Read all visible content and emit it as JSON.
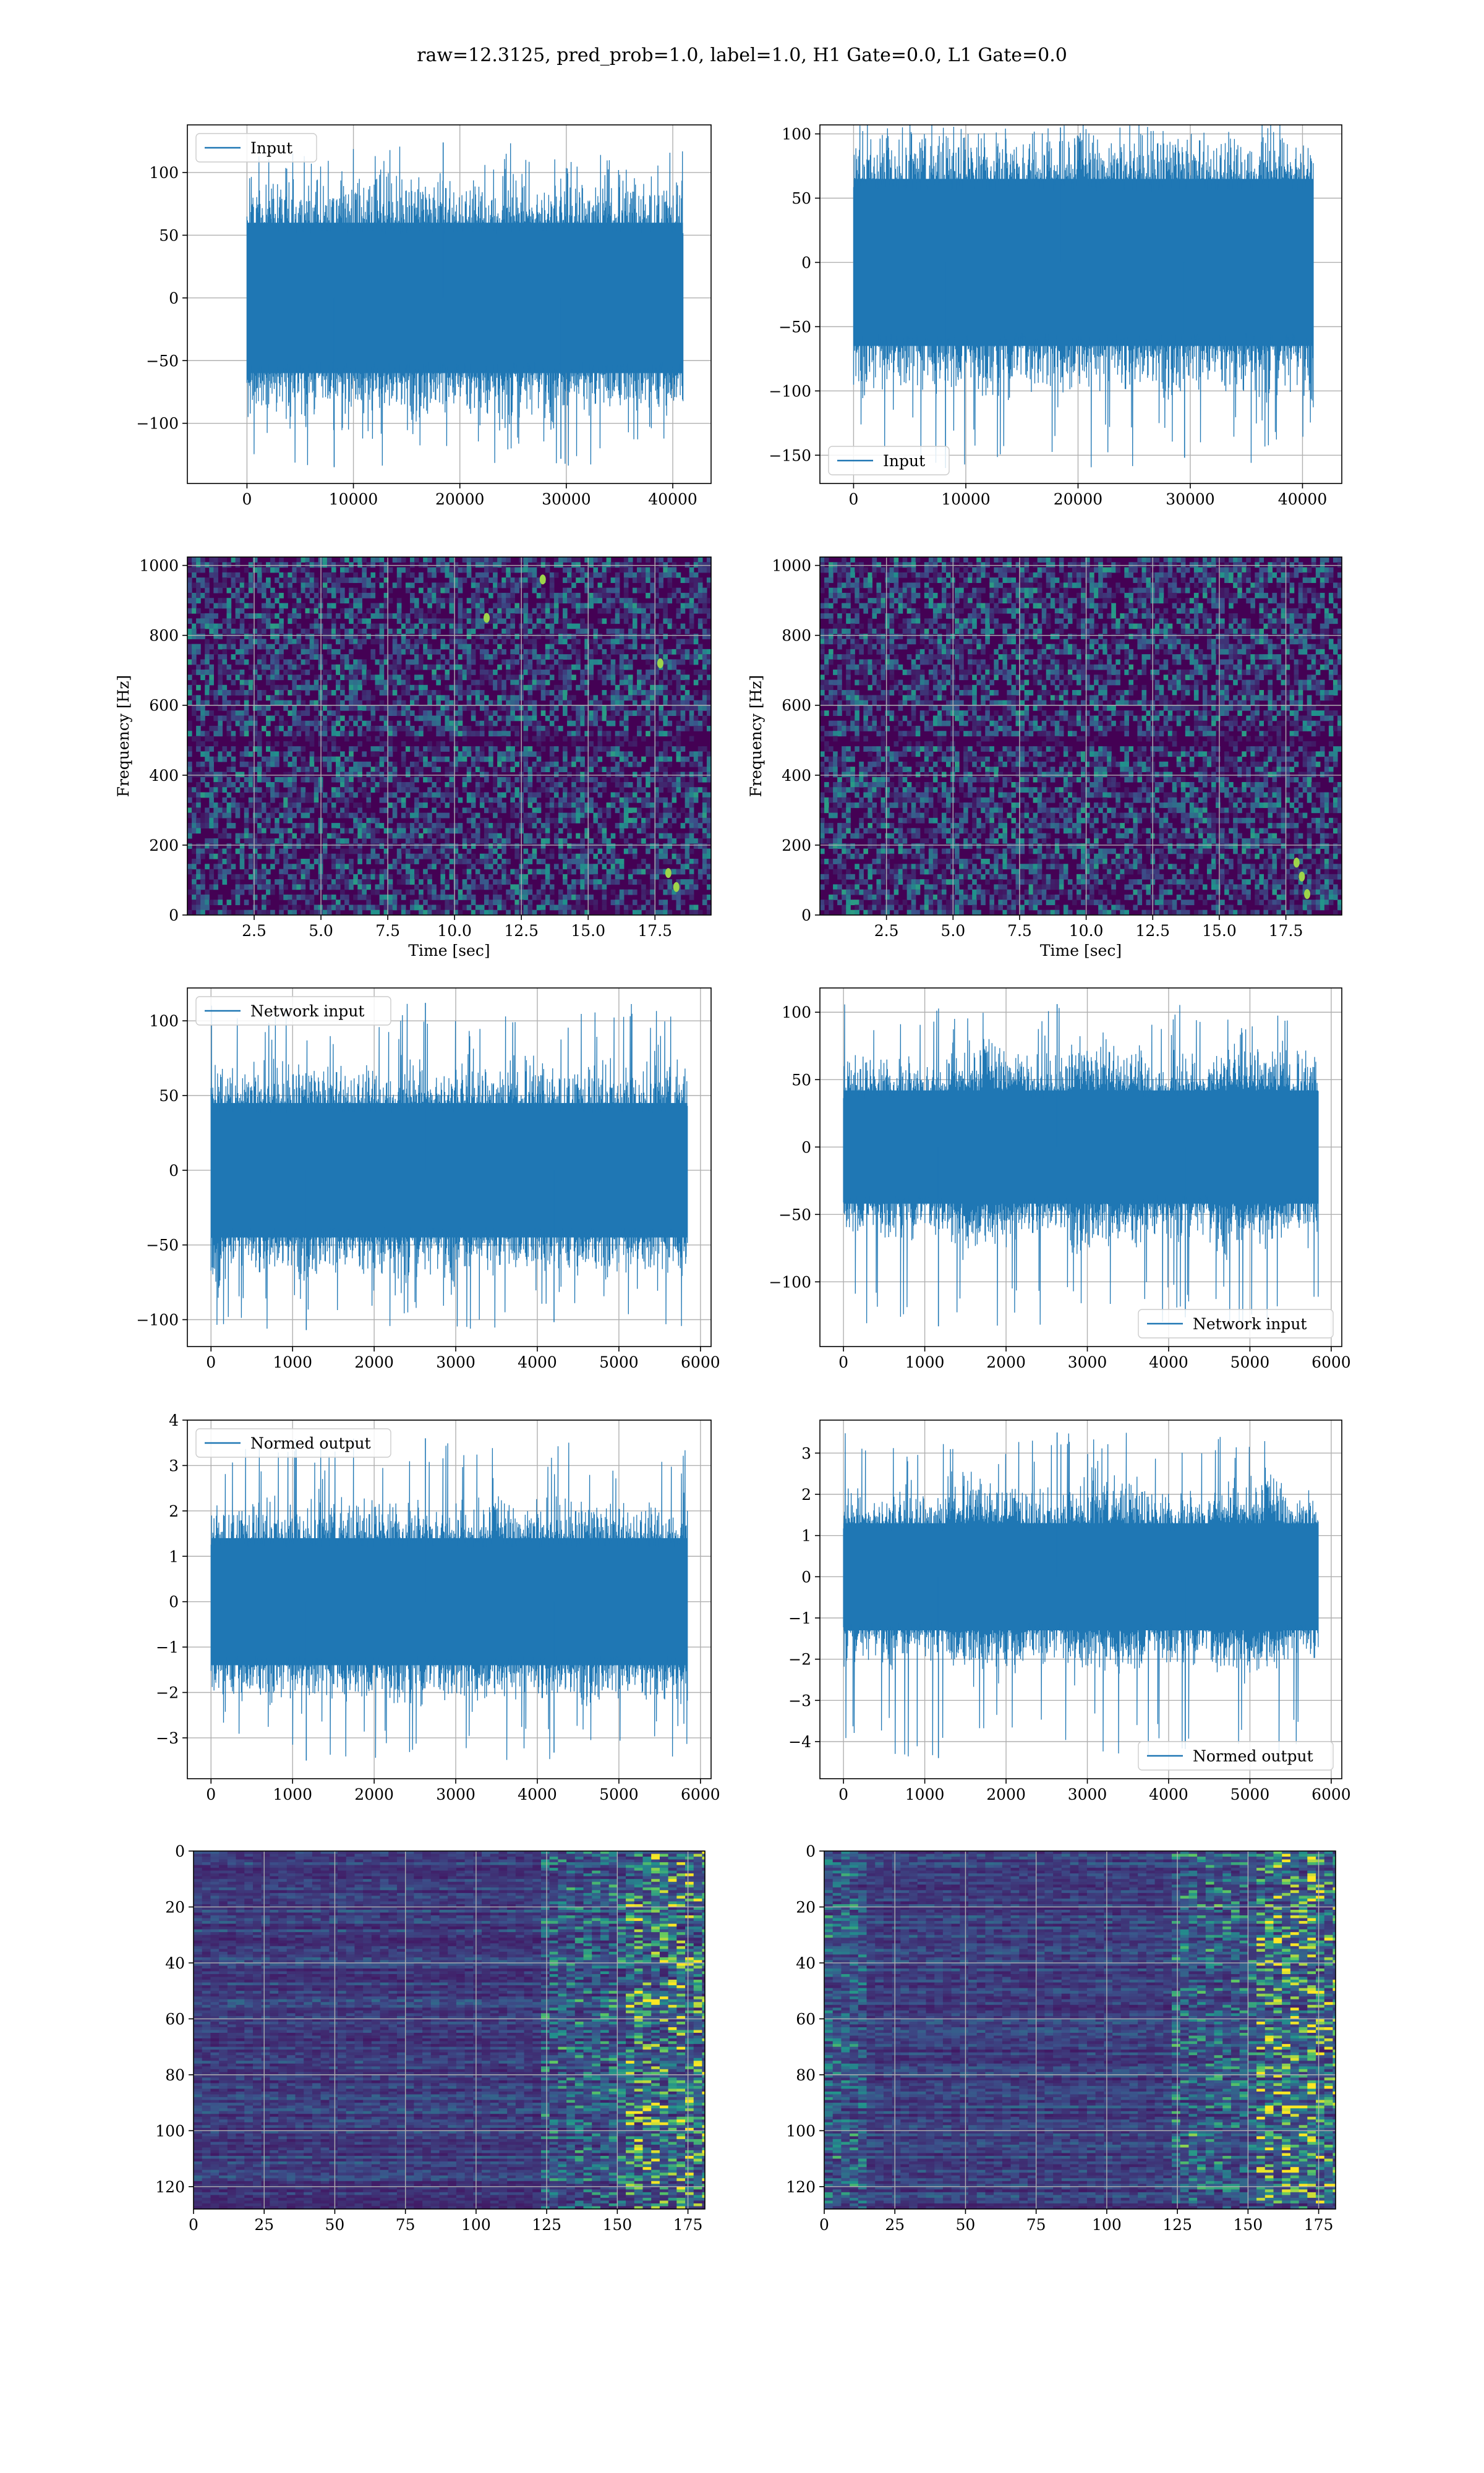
{
  "suptitle": "raw=12.3125, pred_prob=1.0, label=1.0, H1 Gate=0.0, L1 Gate=0.0",
  "colors": {
    "line": "#1f77b4",
    "grid": "#b0b0b0",
    "viridis_low": "#440154",
    "viridis_mid": "#21918c",
    "viridis_high": "#fde725"
  },
  "chart_data": [
    {
      "id": "p1",
      "type": "line",
      "legend": "Input",
      "legend_loc": "upper left",
      "xlim": [
        -5600,
        43600
      ],
      "ylim": [
        -148,
        138
      ],
      "xticks": [
        0,
        10000,
        20000,
        30000,
        40000
      ],
      "yticks": [
        -100,
        -50,
        0,
        50,
        100
      ],
      "series": {
        "x_range": [
          0,
          40960
        ],
        "envelope": [
          -60,
          60
        ],
        "extremes": [
          -135,
          124
        ]
      },
      "grid": true
    },
    {
      "id": "p2",
      "type": "line",
      "legend": "Input",
      "legend_loc": "lower left",
      "xlim": [
        -3000,
        43500
      ],
      "ylim": [
        -172,
        107
      ],
      "xticks": [
        0,
        10000,
        20000,
        30000,
        40000
      ],
      "yticks": [
        -150,
        -100,
        -50,
        0,
        50,
        100
      ],
      "series": {
        "x_range": [
          0,
          40960
        ],
        "envelope": [
          -65,
          65
        ],
        "extremes": [
          -160,
          105
        ]
      },
      "grid": true
    },
    {
      "id": "p3",
      "type": "heatmap",
      "colormap": "viridis",
      "xlabel": "Time [sec]",
      "ylabel": "Frequency [Hz]",
      "xlim": [
        0,
        19.6
      ],
      "ylim": [
        0,
        1024
      ],
      "xticks": [
        2.5,
        5.0,
        7.5,
        10.0,
        12.5,
        15.0,
        17.5
      ],
      "yticks": [
        0,
        200,
        400,
        600,
        800,
        1000
      ],
      "grid": true
    },
    {
      "id": "p4",
      "type": "heatmap",
      "colormap": "viridis",
      "xlabel": "Time [sec]",
      "ylabel": "Frequency [Hz]",
      "xlim": [
        0,
        19.6
      ],
      "ylim": [
        0,
        1024
      ],
      "xticks": [
        2.5,
        5.0,
        7.5,
        10.0,
        12.5,
        15.0,
        17.5
      ],
      "yticks": [
        0,
        200,
        400,
        600,
        800,
        1000
      ],
      "grid": true
    },
    {
      "id": "p5",
      "type": "line",
      "legend": "Network input",
      "legend_loc": "upper left",
      "xlim": [
        -290,
        6130
      ],
      "ylim": [
        -118,
        122
      ],
      "xticks": [
        0,
        1000,
        2000,
        3000,
        4000,
        5000,
        6000
      ],
      "yticks": [
        -100,
        -50,
        0,
        50,
        100
      ],
      "series": {
        "x_range": [
          0,
          5840
        ],
        "envelope": [
          -45,
          45
        ],
        "extremes": [
          -107,
          112
        ]
      },
      "grid": true
    },
    {
      "id": "p6",
      "type": "line",
      "legend": "Network input",
      "legend_loc": "lower right",
      "xlim": [
        -290,
        6130
      ],
      "ylim": [
        -148,
        118
      ],
      "xticks": [
        0,
        1000,
        2000,
        3000,
        4000,
        5000,
        6000
      ],
      "yticks": [
        -100,
        -50,
        0,
        50,
        100
      ],
      "series": {
        "x_range": [
          0,
          5840
        ],
        "envelope": [
          -42,
          42
        ],
        "extremes": [
          -133,
          106
        ]
      },
      "grid": true
    },
    {
      "id": "p7",
      "type": "line",
      "legend": "Normed output",
      "legend_loc": "upper left",
      "xlim": [
        -290,
        6130
      ],
      "ylim": [
        -3.9,
        4.0
      ],
      "xticks": [
        0,
        1000,
        2000,
        3000,
        4000,
        5000,
        6000
      ],
      "yticks": [
        -3,
        -2,
        -1,
        0,
        1,
        2,
        3,
        4
      ],
      "series": {
        "x_range": [
          0,
          5840
        ],
        "envelope": [
          -1.4,
          1.4
        ],
        "extremes": [
          -3.5,
          3.6
        ]
      },
      "grid": true
    },
    {
      "id": "p8",
      "type": "line",
      "legend": "Normed output",
      "legend_loc": "lower right",
      "xlim": [
        -290,
        6130
      ],
      "ylim": [
        -4.9,
        3.8
      ],
      "xticks": [
        0,
        1000,
        2000,
        3000,
        4000,
        5000,
        6000
      ],
      "yticks": [
        -4,
        -3,
        -2,
        -1,
        0,
        1,
        2,
        3
      ],
      "series": {
        "x_range": [
          0,
          5840
        ],
        "envelope": [
          -1.3,
          1.3
        ],
        "extremes": [
          -4.4,
          3.5
        ]
      },
      "grid": true
    },
    {
      "id": "p9",
      "type": "heatmap",
      "colormap": "viridis",
      "xlim": [
        0,
        181
      ],
      "ylim": [
        128,
        0
      ],
      "xticks": [
        0,
        25,
        50,
        75,
        100,
        125,
        150,
        175
      ],
      "yticks": [
        0,
        20,
        40,
        60,
        80,
        100,
        120
      ],
      "grid": true
    },
    {
      "id": "p10",
      "type": "heatmap",
      "colormap": "viridis",
      "xlim": [
        0,
        181
      ],
      "ylim": [
        128,
        0
      ],
      "xticks": [
        0,
        25,
        50,
        75,
        100,
        125,
        150,
        175
      ],
      "yticks": [
        0,
        20,
        40,
        60,
        80,
        100,
        120
      ],
      "grid": true
    }
  ]
}
